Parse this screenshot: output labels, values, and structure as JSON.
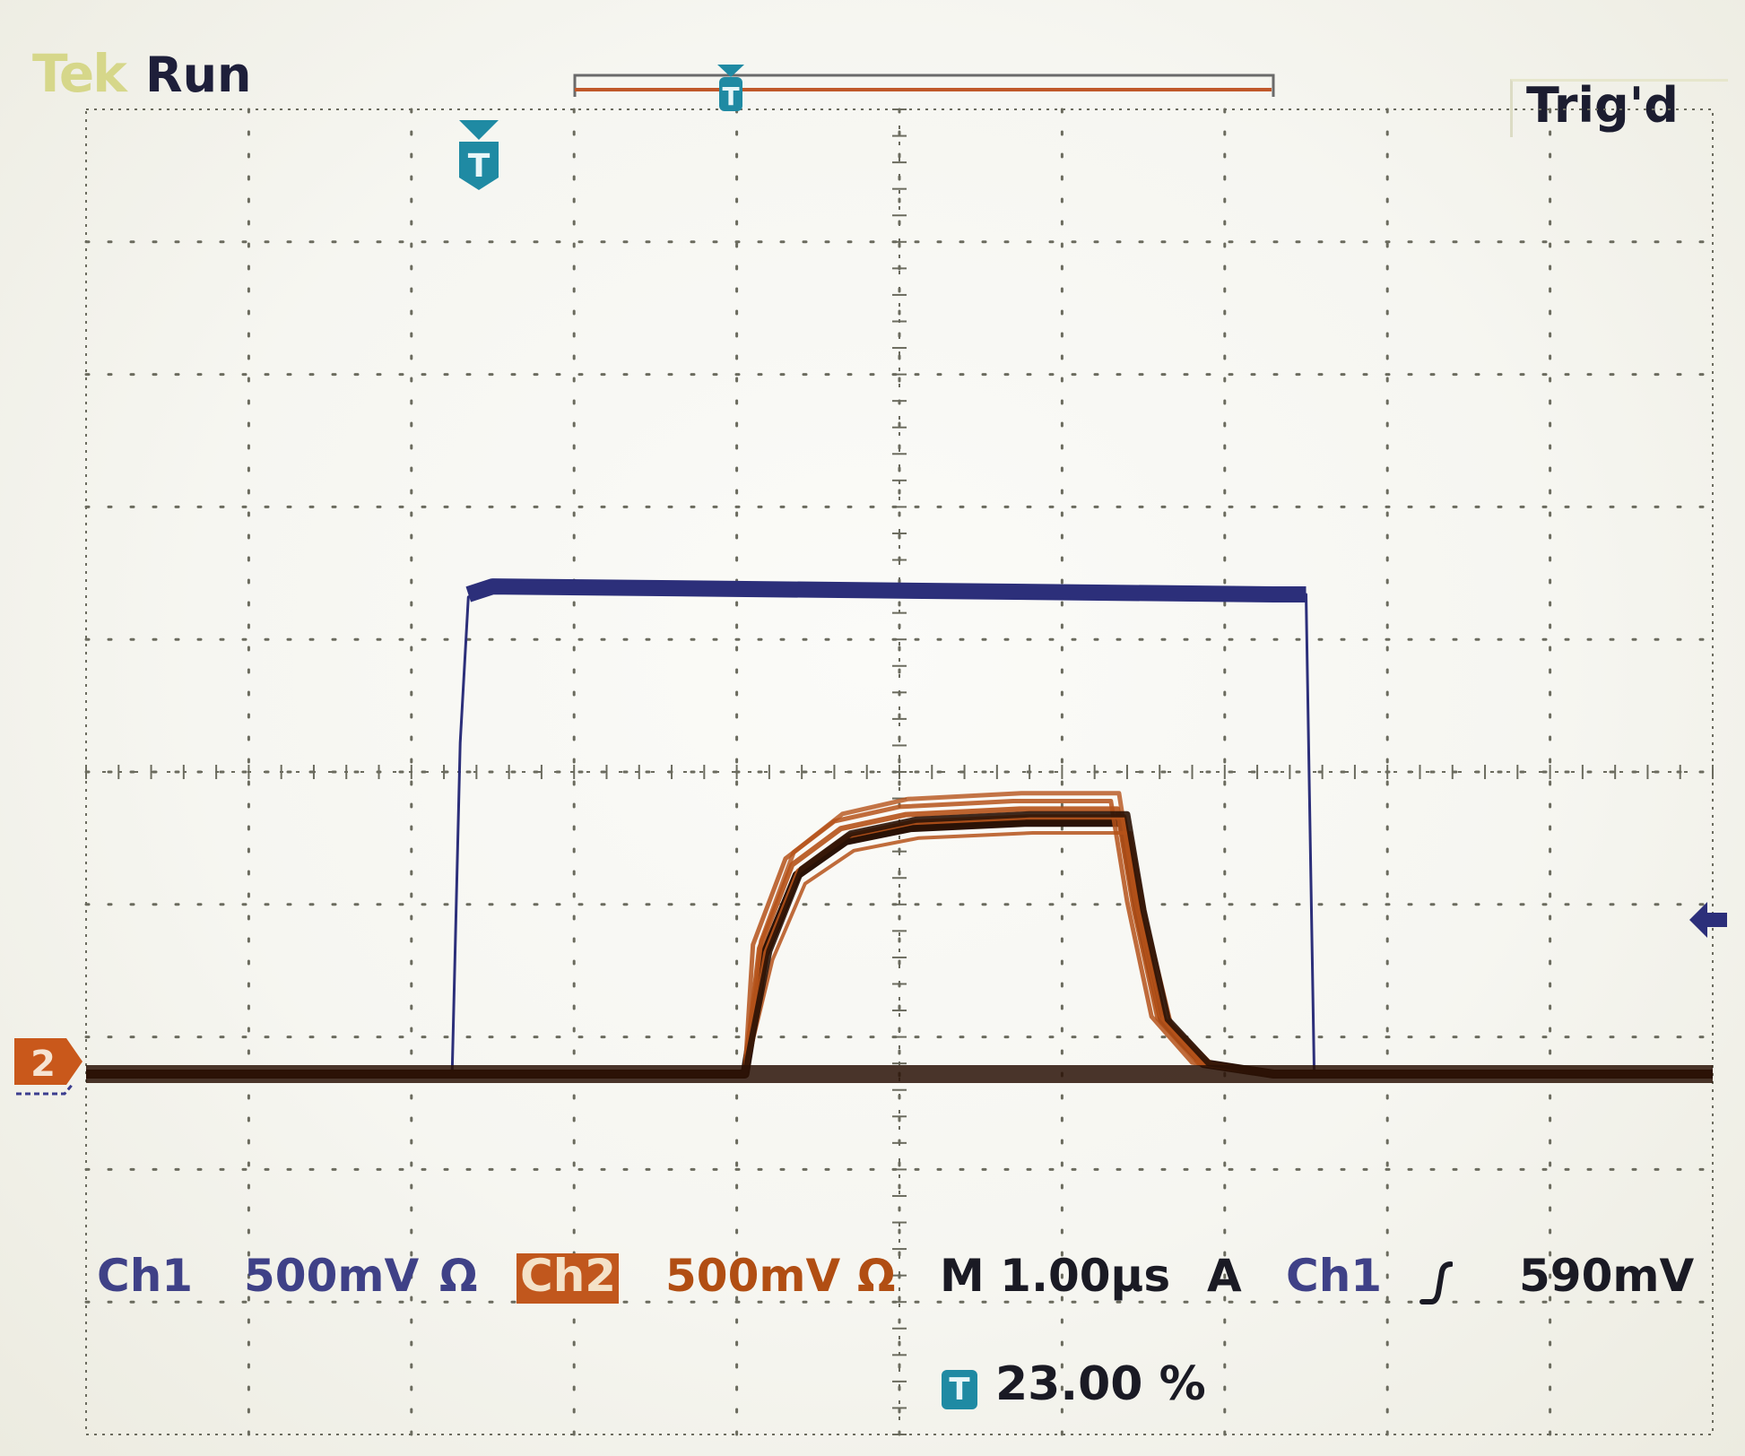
{
  "header": {
    "brand": "Tek",
    "acquisition_state": "Run",
    "trigger_state": "Trig'd"
  },
  "markers": {
    "trigger_marker": "T",
    "ch2_ground_marker": "2",
    "trigger_level_marker": "arrow-left-icon"
  },
  "readout": {
    "ch1_label": "Ch1",
    "ch1_scale": "500mV",
    "ch1_coupling": "Ω",
    "ch2_label": "Ch2",
    "ch2_scale": "500mV",
    "ch2_coupling": "Ω",
    "timebase": "M 1.00µs",
    "trigger_mode": "A",
    "trigger_source": "Ch1",
    "trigger_slope_icon": "rising-edge-icon",
    "trigger_level": "590mV",
    "trigger_position_badge": "T",
    "trigger_position": "23.00 %"
  },
  "colors": {
    "ch1": "#2c2f7a",
    "ch2": "#b5521a",
    "ch2_dark": "#2a1206",
    "trigger_marker": "#1f8aa3",
    "graticule": "#6b6b5e"
  },
  "chart_data": {
    "type": "line",
    "x_unit": "µs",
    "y_unit": "V",
    "xlim": [
      -2.3,
      7.7
    ],
    "series": [
      {
        "name": "Ch1",
        "x": [
          -2.3,
          -0.05,
          0.0,
          0.05,
          0.2,
          5.0,
          5.2,
          5.25,
          7.7
        ],
        "y": [
          0.0,
          0.0,
          1.25,
          1.8,
          1.84,
          1.81,
          1.81,
          0.0,
          0.0
        ]
      },
      {
        "name": "Ch2",
        "x": [
          -2.3,
          1.75,
          1.9,
          2.1,
          2.4,
          2.8,
          3.5,
          4.1,
          4.2,
          4.35,
          4.6,
          5.0,
          7.7
        ],
        "y": [
          0.0,
          0.0,
          0.45,
          0.75,
          0.88,
          0.93,
          0.95,
          0.95,
          0.6,
          0.2,
          0.04,
          0.0,
          0.0
        ]
      }
    ]
  }
}
